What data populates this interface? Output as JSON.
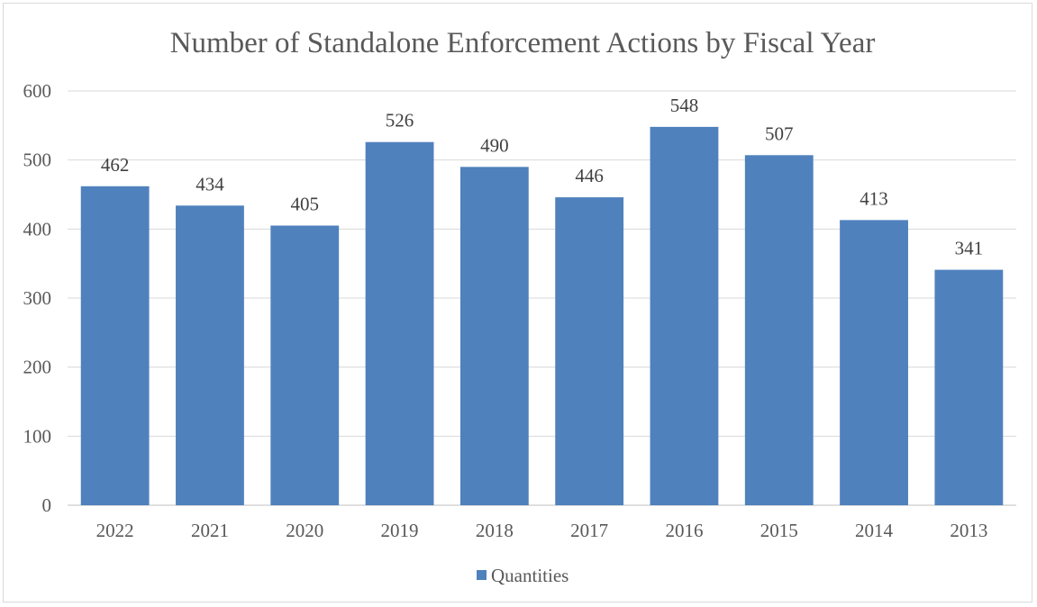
{
  "chart_data": {
    "type": "bar",
    "title": "Number of Standalone Enforcement Actions by Fiscal Year",
    "xlabel": "",
    "ylabel": "",
    "categories": [
      "2022",
      "2021",
      "2020",
      "2019",
      "2018",
      "2017",
      "2016",
      "2015",
      "2014",
      "2013"
    ],
    "series": [
      {
        "name": "Quantities",
        "values": [
          462,
          434,
          405,
          526,
          490,
          446,
          548,
          507,
          413,
          341
        ],
        "color": "#4f81bd"
      }
    ],
    "ylim": [
      0,
      600
    ],
    "yticks": [
      0,
      100,
      200,
      300,
      400,
      500,
      600
    ],
    "grid": true,
    "legend": "bottom",
    "data_labels": true
  }
}
